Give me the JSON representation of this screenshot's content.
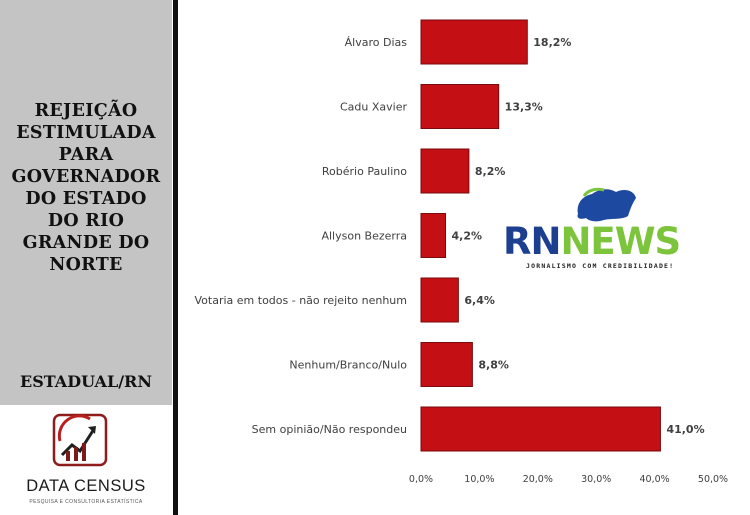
{
  "sidebar": {
    "title": "REJEIÇÃO\nESTIMULADA\nPARA\nGOVERNADOR\nDO ESTADO\nDO RIO\nGRANDE DO\nNORTE",
    "region": "ESTADUAL/RN",
    "brand_name": "DATA CENSUS",
    "brand_tagline": "PESQUISA E CONSULTORIA ESTATÍSTICA"
  },
  "watermark": {
    "name_part1": "RN",
    "name_part2": "NEWS",
    "tagline": "JORNALISMO COM CREDIBILIDADE!",
    "colors": {
      "blue": "#1d3f8f",
      "green": "#7cc43b"
    }
  },
  "chart_data": {
    "type": "bar",
    "orientation": "horizontal",
    "categories": [
      "Álvaro Dias",
      "Cadu Xavier",
      "Robério Paulino",
      "Allyson Bezerra",
      "Votaria em todos - não rejeito nenhum",
      "Nenhum/Branco/Nulo",
      "Sem opinião/Não respondeu"
    ],
    "values": [
      18.2,
      13.3,
      8.2,
      4.2,
      6.4,
      8.8,
      41.0
    ],
    "value_labels": [
      "18,2%",
      "13,3%",
      "8,2%",
      "4,2%",
      "6,4%",
      "8,8%",
      "41,0%"
    ],
    "x_ticks": [
      "0,0%",
      "10,0%",
      "20,0%",
      "30,0%",
      "40,0%",
      "50,0%"
    ],
    "xlim": [
      0,
      50
    ],
    "grid": false,
    "bar_color": "#c40f14"
  }
}
